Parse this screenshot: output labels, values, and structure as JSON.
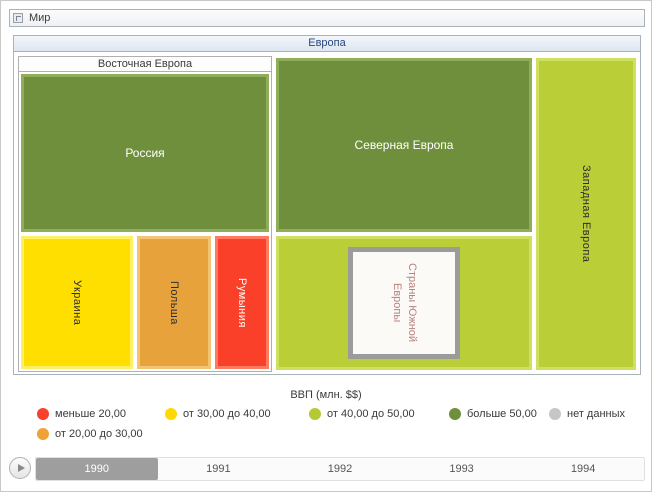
{
  "window": {
    "root_label": "Мир"
  },
  "treemap": {
    "europe": {
      "label": "Европа",
      "eastern": {
        "label": "Восточная Европа",
        "russia": {
          "label": "Россия",
          "fill": "#6f8f3d",
          "border": "#8fae5a"
        },
        "ukraine": {
          "label": "Украина",
          "fill": "#ffdf00",
          "border": "#ffef66"
        },
        "poland": {
          "label": "Польша",
          "fill": "#e8a23c",
          "border": "#f2c474"
        },
        "romania": {
          "label": "Румыния",
          "fill": "#fb4029",
          "border": "#ff7a60"
        }
      },
      "northern": {
        "label": "Северная Европа",
        "fill": "#6f8f3d",
        "border": "#8fae5a"
      },
      "southern": {
        "label": "Страны Южной Европы",
        "area_fill": "#b9ce37",
        "area_border": "#cfe060",
        "circle_fill": "#fbfaf6",
        "circle_border": "#9b9b9b",
        "text_color": "#bb8080"
      },
      "western": {
        "label": "Западная Европа",
        "fill": "#b9ce37",
        "border": "#cfe060"
      }
    }
  },
  "legend": {
    "title": "ВВП (млн. $$)",
    "items": [
      {
        "label": "меньше 20,00",
        "color": "#f9402c"
      },
      {
        "label": "от 20,00 до 30,00",
        "color": "#f0a236"
      },
      {
        "label": "от 30,00 до 40,00",
        "color": "#ffd900"
      },
      {
        "label": "от 40,00 до 50,00",
        "color": "#b4c933"
      },
      {
        "label": "больше 50,00",
        "color": "#6f8f3d"
      },
      {
        "label": "нет данных",
        "color": "#c6c6c6"
      }
    ]
  },
  "timeline": {
    "years": [
      "1990",
      "1991",
      "1992",
      "1993",
      "1994"
    ],
    "selected": "1990"
  },
  "chart_data": {
    "type": "treemap",
    "title": "ВВП (млн. $$)",
    "root": "Мир",
    "nodes": [
      {
        "path": [
          "Мир",
          "Европа",
          "Восточная Европа",
          "Россия"
        ],
        "category": "больше 50,00"
      },
      {
        "path": [
          "Мир",
          "Европа",
          "Восточная Европа",
          "Украина"
        ],
        "category": "от 30,00 до 40,00"
      },
      {
        "path": [
          "Мир",
          "Европа",
          "Восточная Европа",
          "Польша"
        ],
        "category": "от 20,00 до 30,00"
      },
      {
        "path": [
          "Мир",
          "Европа",
          "Восточная Европа",
          "Румыния"
        ],
        "category": "меньше 20,00"
      },
      {
        "path": [
          "Мир",
          "Европа",
          "Северная Европа"
        ],
        "category": "больше 50,00"
      },
      {
        "path": [
          "Мир",
          "Европа",
          "Страны Южной Европы"
        ],
        "category": "нет данных"
      },
      {
        "path": [
          "Мир",
          "Европа",
          "Западная Европа"
        ],
        "category": "от 40,00 до 50,00"
      }
    ],
    "legend": [
      "меньше 20,00",
      "от 20,00 до 30,00",
      "от 30,00 до 40,00",
      "от 40,00 до 50,00",
      "больше 50,00",
      "нет данных"
    ],
    "legend_position": "bottom",
    "timeline": {
      "years": [
        "1990",
        "1991",
        "1992",
        "1993",
        "1994"
      ],
      "selected": "1990"
    }
  }
}
